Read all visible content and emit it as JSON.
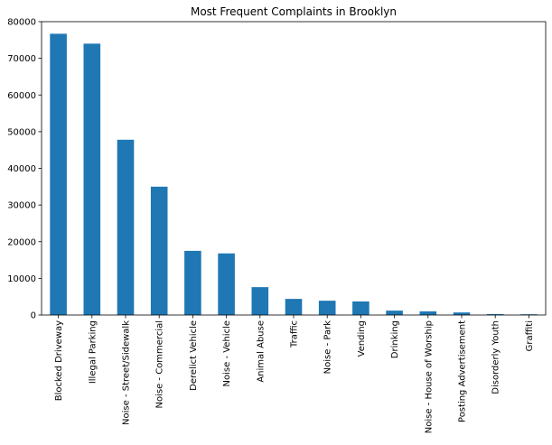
{
  "chart_data": {
    "type": "bar",
    "title": "Most Frequent Complaints in Brooklyn",
    "xlabel": "",
    "ylabel": "",
    "categories": [
      "Blocked Driveway",
      "Illegal Parking",
      "Noise - Street/Sidewalk",
      "Noise - Commercial",
      "Derelict Vehicle",
      "Noise - Vehicle",
      "Animal Abuse",
      "Traffic",
      "Noise - Park",
      "Vending",
      "Drinking",
      "Noise - House of Worship",
      "Posting Advertisement",
      "Disorderly Youth",
      "Graffiti"
    ],
    "values": [
      76700,
      74000,
      47800,
      35000,
      17500,
      16800,
      7600,
      4400,
      3900,
      3700,
      1200,
      1000,
      700,
      250,
      200
    ],
    "ylim": [
      0,
      80000
    ],
    "yticks": [
      0,
      10000,
      20000,
      30000,
      40000,
      50000,
      60000,
      70000,
      80000
    ],
    "grid": false,
    "legend": "none",
    "colors": {
      "bar": "#1f77b4"
    }
  }
}
